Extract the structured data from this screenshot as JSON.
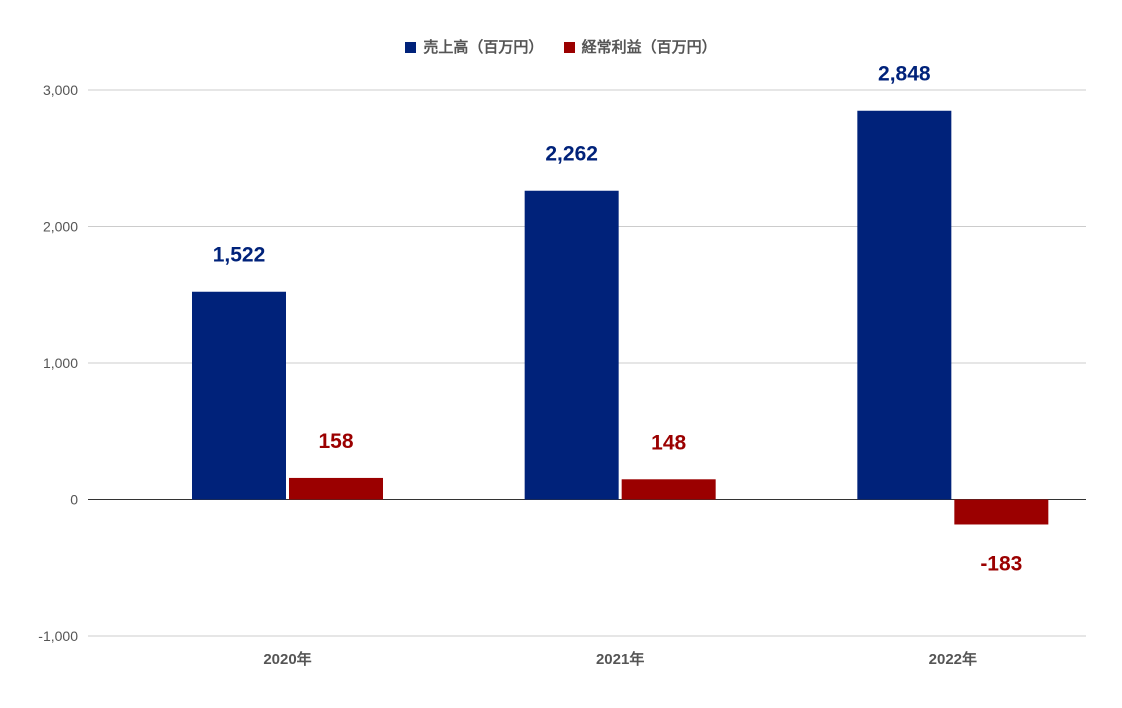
{
  "colors": {
    "sales": "#00227a",
    "profit": "#9b0000",
    "grid": "#cccccc",
    "axis": "#333333",
    "tick_text": "#555555"
  },
  "chart_data": {
    "type": "bar",
    "categories": [
      "2020年",
      "2021年",
      "2022年"
    ],
    "series": [
      {
        "name": "売上高（百万円）",
        "values": [
          1522,
          2262,
          2848
        ],
        "labels": [
          "1,522",
          "2,262",
          "2,848"
        ]
      },
      {
        "name": "経常利益（百万円）",
        "values": [
          158,
          148,
          -183
        ],
        "labels": [
          "158",
          "148",
          "-183"
        ]
      }
    ],
    "ylim": [
      -1000,
      3000
    ],
    "yticks": [
      {
        "value": 3000,
        "label": "3,000"
      },
      {
        "value": 2000,
        "label": "2,000"
      },
      {
        "value": 1000,
        "label": "1,000"
      },
      {
        "value": 0,
        "label": "0"
      },
      {
        "value": -1000,
        "label": "-1,000"
      }
    ],
    "grid": true,
    "legend_position": "top-center",
    "title": "",
    "xlabel": "",
    "ylabel": ""
  }
}
